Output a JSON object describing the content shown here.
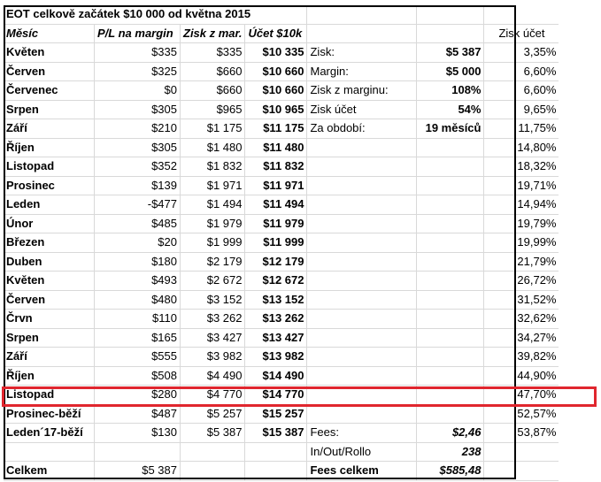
{
  "title": "EOT celkově začátek $10 000 od května 2015",
  "headers": {
    "month": "Měsíc",
    "pl": "P/L na margin",
    "zisk": "Zisk z mar.",
    "ucet": "Účet $10k",
    "zisk_ucet": "Zisk účet"
  },
  "rows": [
    {
      "month": "Květen",
      "pl": "$335",
      "zisk": "$335",
      "ucet": "$10 335",
      "label": "Zisk:",
      "value": "$5 387",
      "pct": "3,35%"
    },
    {
      "month": "Červen",
      "pl": "$325",
      "zisk": "$660",
      "ucet": "$10 660",
      "label": "Margin:",
      "value": "$5 000",
      "pct": "6,60%"
    },
    {
      "month": "Červenec",
      "pl": "$0",
      "zisk": "$660",
      "ucet": "$10 660",
      "label": "Zisk z marginu:",
      "value": "108%",
      "pct": "6,60%"
    },
    {
      "month": "Srpen",
      "pl": "$305",
      "zisk": "$965",
      "ucet": "$10 965",
      "label": "Zisk účet",
      "value": "54%",
      "pct": "9,65%"
    },
    {
      "month": "Září",
      "pl": "$210",
      "zisk": "$1 175",
      "ucet": "$11 175",
      "label": "Za období:",
      "value": "19 měsíců",
      "pct": "11,75%"
    },
    {
      "month": "Říjen",
      "pl": "$305",
      "zisk": "$1 480",
      "ucet": "$11 480",
      "label": "",
      "value": "",
      "pct": "14,80%"
    },
    {
      "month": "Listopad",
      "pl": "$352",
      "zisk": "$1 832",
      "ucet": "$11 832",
      "label": "",
      "value": "",
      "pct": "18,32%"
    },
    {
      "month": "Prosinec",
      "pl": "$139",
      "zisk": "$1 971",
      "ucet": "$11 971",
      "label": "",
      "value": "",
      "pct": "19,71%"
    },
    {
      "month": "Leden",
      "pl": "-$477",
      "zisk": "$1 494",
      "ucet": "$11 494",
      "label": "",
      "value": "",
      "pct": "14,94%"
    },
    {
      "month": "Únor",
      "pl": "$485",
      "zisk": "$1 979",
      "ucet": "$11 979",
      "label": "",
      "value": "",
      "pct": "19,79%"
    },
    {
      "month": "Březen",
      "pl": "$20",
      "zisk": "$1 999",
      "ucet": "$11 999",
      "label": "",
      "value": "",
      "pct": "19,99%"
    },
    {
      "month": "Duben",
      "pl": "$180",
      "zisk": "$2 179",
      "ucet": "$12 179",
      "label": "",
      "value": "",
      "pct": "21,79%"
    },
    {
      "month": "Květen",
      "pl": "$493",
      "zisk": "$2 672",
      "ucet": "$12 672",
      "label": "",
      "value": "",
      "pct": "26,72%"
    },
    {
      "month": "Červen",
      "pl": "$480",
      "zisk": "$3 152",
      "ucet": "$13 152",
      "label": "",
      "value": "",
      "pct": "31,52%"
    },
    {
      "month": "Črvn",
      "pl": "$110",
      "zisk": "$3 262",
      "ucet": "$13 262",
      "label": "",
      "value": "",
      "pct": "32,62%"
    },
    {
      "month": "Srpen",
      "pl": "$165",
      "zisk": "$3 427",
      "ucet": "$13 427",
      "label": "",
      "value": "",
      "pct": "34,27%"
    },
    {
      "month": "Září",
      "pl": "$555",
      "zisk": "$3 982",
      "ucet": "$13 982",
      "label": "",
      "value": "",
      "pct": "39,82%"
    },
    {
      "month": "Říjen",
      "pl": "$508",
      "zisk": "$4 490",
      "ucet": "$14 490",
      "label": "",
      "value": "",
      "pct": "44,90%"
    },
    {
      "month": "Listopad",
      "pl": "$280",
      "zisk": "$4 770",
      "ucet": "$14 770",
      "label": "",
      "value": "",
      "pct": "47,70%"
    },
    {
      "month": "Prosinec-běží",
      "pl": "$487",
      "zisk": "$5 257",
      "ucet": "$15 257",
      "label": "",
      "value": "",
      "pct": "52,57%"
    },
    {
      "month": "Leden´17-běží",
      "pl": "$130",
      "zisk": "$5 387",
      "ucet": "$15 387",
      "label": "Fees:",
      "value": "$2,46",
      "pct": "53,87%"
    },
    {
      "month": "",
      "pl": "",
      "zisk": "",
      "ucet": "",
      "label": "In/Out/Rollo",
      "value": "238",
      "pct": ""
    },
    {
      "month": "Celkem",
      "pl": "$5 387",
      "zisk": "",
      "ucet": "",
      "label": "Fees celkem",
      "value": "$585,48",
      "pct": ""
    }
  ],
  "highlight_color": "#e0262e"
}
